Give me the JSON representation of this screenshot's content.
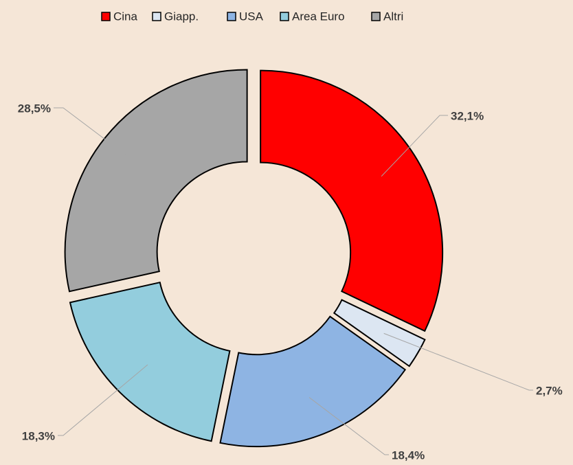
{
  "chart_data": {
    "type": "donut",
    "categories": [
      "Cina",
      "Giapp.",
      "USA",
      "Area Euro",
      "Altri"
    ],
    "values": [
      32.1,
      2.7,
      18.4,
      18.3,
      28.5
    ],
    "value_labels": [
      "32,1%",
      "2,7%",
      "18,4%",
      "18,3%",
      "28,5%"
    ],
    "colors": [
      "#ff0000",
      "#dce6f2",
      "#8eb4e3",
      "#93cddd",
      "#a6a6a6"
    ],
    "legend": "top"
  }
}
